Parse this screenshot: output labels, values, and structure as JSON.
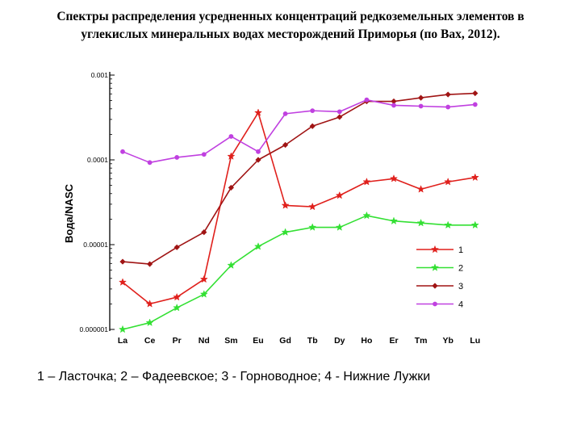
{
  "title_line1": "Спектры распределения усредненных концентраций редкоземельных элементов в",
  "title_line2": "углекислых минеральных водах месторождений Приморья (по Bax, 2012).",
  "caption": "1 – Ласточка; 2 – Фадеевское; 3 - Горноводное; 4 - Нижние Лужки",
  "colors": {
    "s1": "#e0201c",
    "s2": "#33e033",
    "s3": "#a01414",
    "s4": "#c040e0"
  },
  "chart_data": {
    "type": "line",
    "title": "",
    "xlabel": "",
    "ylabel": "Вода/NASC",
    "yscale": "log",
    "ylim": [
      1e-06,
      0.001
    ],
    "yticks": [
      0.001,
      0.0001,
      1e-05,
      1e-06
    ],
    "ytick_labels": [
      "0.001",
      "0.0001",
      "0.00001",
      "0.000001"
    ],
    "grid": false,
    "legend": "right-inside",
    "categories": [
      "La",
      "Ce",
      "Pr",
      "Nd",
      "Sm",
      "Eu",
      "Gd",
      "Tb",
      "Dy",
      "Ho",
      "Er",
      "Tm",
      "Yb",
      "Lu"
    ],
    "series": [
      {
        "name": "1",
        "marker": "star",
        "values": [
          3.6e-06,
          2e-06,
          2.4e-06,
          3.9e-06,
          0.00011,
          0.00036,
          2.9e-05,
          2.8e-05,
          3.8e-05,
          5.5e-05,
          6e-05,
          4.5e-05,
          5.5e-05,
          6.2e-05
        ]
      },
      {
        "name": "2",
        "marker": "star",
        "values": [
          1e-06,
          1.2e-06,
          1.8e-06,
          2.6e-06,
          5.7e-06,
          9.5e-06,
          1.4e-05,
          1.6e-05,
          1.6e-05,
          2.2e-05,
          1.9e-05,
          1.8e-05,
          1.7e-05,
          1.7e-05
        ]
      },
      {
        "name": "3",
        "marker": "diamond",
        "values": [
          6.3e-06,
          5.9e-06,
          9.3e-06,
          1.4e-05,
          4.7e-05,
          0.0001,
          0.00015,
          0.00025,
          0.00032,
          0.00049,
          0.00049,
          0.00054,
          0.00059,
          0.00061
        ]
      },
      {
        "name": "4",
        "marker": "circle",
        "values": [
          0.000125,
          9.3e-05,
          0.000107,
          0.000116,
          0.000189,
          0.000125,
          0.00035,
          0.00038,
          0.00037,
          0.00051,
          0.00044,
          0.00043,
          0.00042,
          0.00045
        ]
      }
    ]
  }
}
